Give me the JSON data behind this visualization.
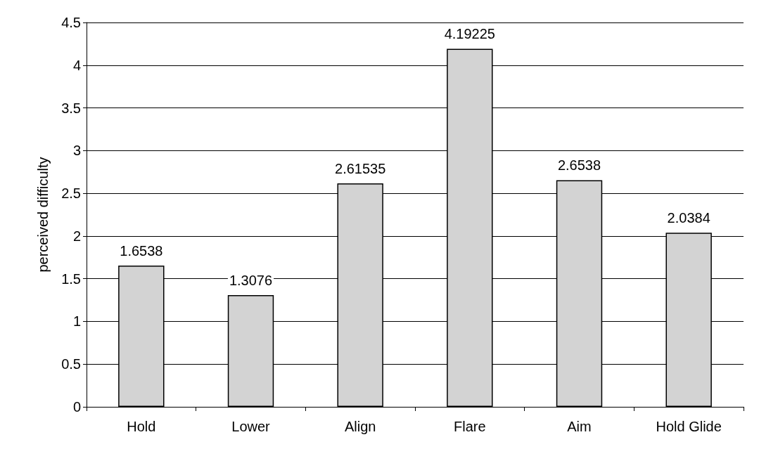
{
  "chart_data": {
    "type": "bar",
    "ylabel": "perceived difficulty",
    "categories": [
      "Hold",
      "Lower",
      "Align",
      "Flare",
      "Aim",
      "Hold Glide"
    ],
    "values": [
      1.6538,
      1.3076,
      2.61535,
      4.19225,
      2.6538,
      2.0384
    ],
    "color": "#d3d3d3",
    "ylim": [
      0,
      4.5
    ],
    "yticks": [
      0,
      0.5,
      1,
      1.5,
      2,
      2.5,
      3,
      3.5,
      4,
      4.5
    ],
    "grid": "y",
    "data_labels": true
  }
}
